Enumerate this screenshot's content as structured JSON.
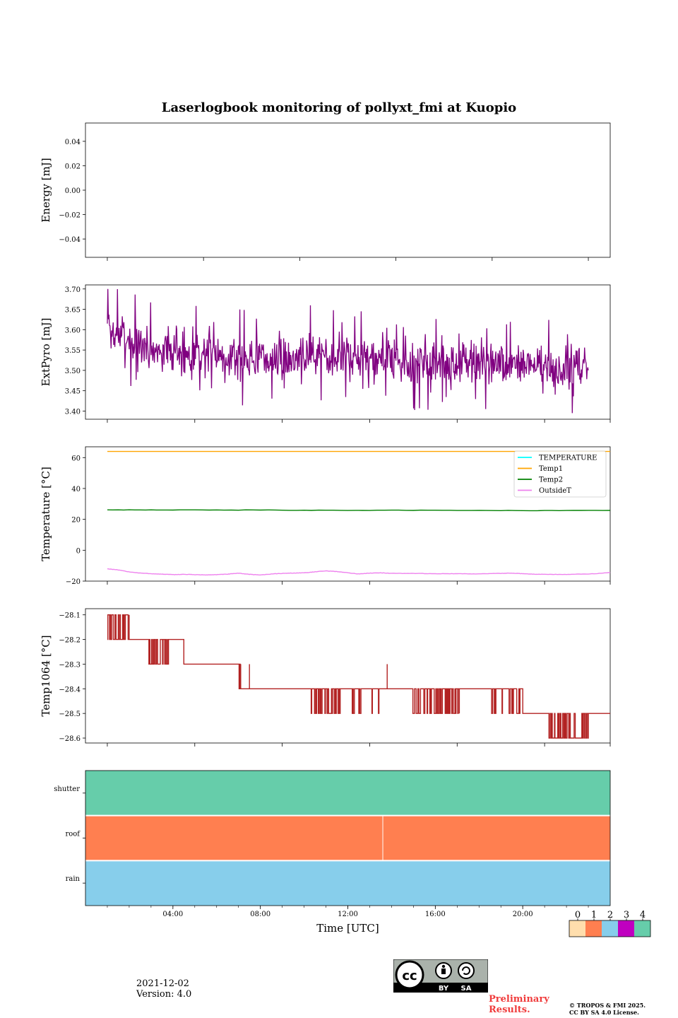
{
  "title": "Laserlogbook monitoring of pollyxt_fmi at Kuopio",
  "footer": {
    "date": "2021-12-02",
    "version": "Version: 4.0",
    "preliminary_line1": "Preliminary",
    "preliminary_line2": "Results.",
    "copyright_line1": "© TROPOS & FMI 2025.",
    "copyright_line2": "CC BY SA 4.0 License.",
    "cc_badge": {
      "cc": "cc",
      "by": "BY",
      "sa": "SA"
    }
  },
  "colors": {
    "extpyro": "#800080",
    "temperature": "#00ffff",
    "temp1": "#ffa500",
    "temp2": "#008000",
    "outsideT": "#ee82ee",
    "temp1064": "#b22222",
    "flag_colors": [
      "#ffdead",
      "#ff7f50",
      "#87ceeb",
      "#c000c0",
      "#66cdaa"
    ]
  },
  "chart_data": [
    {
      "type": "line",
      "panel": "energy",
      "ylabel": "Energy [mJ]",
      "ylim": [
        -0.055,
        0.055
      ],
      "yticks": [
        0.04,
        0.02,
        0.0,
        -0.02,
        -0.04
      ],
      "ytick_labels": [
        "0.04",
        "0.02",
        "0.00",
        "−0.02",
        "−0.04"
      ],
      "xlim": [
        0,
        24
      ],
      "series": []
    },
    {
      "type": "line",
      "panel": "extpyro",
      "ylabel": "ExtPyro [mJ]",
      "ylim": [
        3.38,
        3.71
      ],
      "yticks": [
        3.7,
        3.65,
        3.6,
        3.55,
        3.5,
        3.45,
        3.4
      ],
      "ytick_labels": [
        "3.70",
        "3.65",
        "3.60",
        "3.55",
        "3.50",
        "3.45",
        "3.40"
      ],
      "xlim": [
        0,
        24
      ],
      "series": [
        {
          "name": "ExtPyro",
          "color": "#800080",
          "x": [
            1.0,
            1.2,
            1.4,
            1.6,
            1.8,
            2.0,
            2.2,
            2.4,
            2.6,
            2.8,
            3.0,
            3.5,
            4.0,
            4.5,
            5.0,
            5.5,
            6.0,
            6.5,
            7.0,
            7.5,
            8.0,
            8.5,
            9.0,
            9.5,
            10.0,
            10.5,
            11.0,
            11.5,
            12.0,
            12.5,
            13.0,
            13.5,
            14.0,
            14.5,
            15.0,
            15.5,
            16.0,
            16.5,
            17.0,
            17.5,
            18.0,
            18.5,
            19.0,
            19.5,
            20.0,
            20.5,
            21.0,
            21.5,
            22.0,
            22.5,
            23.0
          ],
          "center": [
            3.6,
            3.6,
            3.59,
            3.59,
            3.58,
            3.58,
            3.57,
            3.57,
            3.56,
            3.56,
            3.55,
            3.55,
            3.55,
            3.54,
            3.54,
            3.54,
            3.54,
            3.54,
            3.53,
            3.53,
            3.53,
            3.53,
            3.53,
            3.53,
            3.54,
            3.54,
            3.54,
            3.54,
            3.53,
            3.53,
            3.53,
            3.53,
            3.53,
            3.52,
            3.52,
            3.52,
            3.52,
            3.52,
            3.52,
            3.52,
            3.52,
            3.51,
            3.51,
            3.51,
            3.51,
            3.51,
            3.51,
            3.5,
            3.5,
            3.5,
            3.5
          ],
          "spread": 0.035,
          "max": 3.7,
          "min": 3.395,
          "end_value": 3.5
        }
      ]
    },
    {
      "type": "line",
      "panel": "temperature",
      "ylabel": "Temperature [°C]",
      "ylim": [
        -20,
        67
      ],
      "yticks": [
        60,
        40,
        20,
        0,
        -20
      ],
      "ytick_labels": [
        "60",
        "40",
        "20",
        "0",
        "−20"
      ],
      "xlim": [
        0,
        24
      ],
      "legend": {
        "position": "top-right",
        "entries": [
          "TEMPERATURE",
          "Temp1",
          "Temp2",
          "OutsideT"
        ]
      },
      "series": [
        {
          "name": "TEMPERATURE",
          "color": "#00ffff",
          "x": [],
          "y": []
        },
        {
          "name": "Temp1",
          "color": "#ffa500",
          "x": [
            1,
            24
          ],
          "y": [
            64,
            64
          ]
        },
        {
          "name": "Temp2",
          "color": "#008000",
          "x": [
            1,
            4,
            8,
            12,
            16,
            20,
            24
          ],
          "y": [
            26.2,
            26.1,
            26.0,
            25.8,
            25.9,
            25.7,
            25.8
          ]
        },
        {
          "name": "OutsideT",
          "color": "#ee82ee",
          "x": [
            1.0,
            1.5,
            2.0,
            2.5,
            3.0,
            3.5,
            4.0,
            4.5,
            5.0,
            5.5,
            6.0,
            6.5,
            7.0,
            7.5,
            8.0,
            8.5,
            9.0,
            9.5,
            10.0,
            10.5,
            11.0,
            11.5,
            12.0,
            12.5,
            13.0,
            13.5,
            14.0,
            15.0,
            16.0,
            17.0,
            18.0,
            19.0,
            19.5,
            20.0,
            20.5,
            21.0,
            22.0,
            23.0,
            24.0
          ],
          "y": [
            -12.0,
            -12.8,
            -14.0,
            -14.8,
            -15.2,
            -15.5,
            -15.8,
            -15.6,
            -15.8,
            -16.0,
            -15.8,
            -15.5,
            -14.9,
            -15.6,
            -16.0,
            -15.4,
            -15.0,
            -14.8,
            -14.6,
            -14.0,
            -13.4,
            -13.8,
            -14.6,
            -15.4,
            -14.8,
            -14.6,
            -15.0,
            -15.0,
            -15.2,
            -15.2,
            -15.3,
            -15.0,
            -14.8,
            -15.2,
            -15.5,
            -15.6,
            -15.7,
            -15.4,
            -14.5
          ]
        }
      ]
    },
    {
      "type": "line",
      "panel": "temp1064",
      "ylabel": "Temp1064 [°C]",
      "ylim": [
        -28.62,
        -28.075
      ],
      "yticks": [
        -28.1,
        -28.2,
        -28.3,
        -28.4,
        -28.5,
        -28.6
      ],
      "ytick_labels": [
        "−28.1",
        "−28.2",
        "−28.3",
        "−28.4",
        "−28.5",
        "−28.6"
      ],
      "xlim": [
        0,
        24
      ],
      "series": [
        {
          "name": "Temp1064",
          "color": "#b22222",
          "segments": [
            {
              "from": 1.0,
              "to": 2.0,
              "base": -28.2,
              "alt": -28.1,
              "density": 0.45
            },
            {
              "from": 2.0,
              "to": 2.8,
              "base": -28.2,
              "alt": -28.2,
              "density": 0.0
            },
            {
              "from": 2.8,
              "to": 3.8,
              "base": -28.2,
              "alt": -28.3,
              "density": 0.5
            },
            {
              "from": 3.8,
              "to": 4.5,
              "base": -28.2,
              "alt": -28.2,
              "density": 0.0
            },
            {
              "from": 4.5,
              "to": 7.0,
              "base": -28.3,
              "alt": -28.3,
              "density": 0.0
            },
            {
              "from": 7.0,
              "to": 7.1,
              "base": -28.3,
              "alt": -28.4,
              "density": 0.6
            },
            {
              "from": 7.1,
              "to": 10.3,
              "base": -28.4,
              "alt": -28.4,
              "density": 0.0
            },
            {
              "from": 10.3,
              "to": 11.5,
              "base": -28.4,
              "alt": -28.5,
              "density": 0.35
            },
            {
              "from": 11.5,
              "to": 13.6,
              "base": -28.4,
              "alt": -28.5,
              "density": 0.15
            },
            {
              "from": 13.6,
              "to": 14.9,
              "base": -28.4,
              "alt": -28.4,
              "density": 0.0
            },
            {
              "from": 14.9,
              "to": 17.1,
              "base": -28.4,
              "alt": -28.5,
              "density": 0.4
            },
            {
              "from": 17.1,
              "to": 18.5,
              "base": -28.4,
              "alt": -28.4,
              "density": 0.0
            },
            {
              "from": 18.5,
              "to": 20.0,
              "base": -28.4,
              "alt": -28.5,
              "density": 0.3
            },
            {
              "from": 20.0,
              "to": 21.2,
              "base": -28.5,
              "alt": -28.5,
              "density": 0.0
            },
            {
              "from": 21.2,
              "to": 23.0,
              "base": -28.6,
              "alt": -28.5,
              "density": 0.4
            },
            {
              "from": 23.0,
              "to": 24.0,
              "base": -28.5,
              "alt": -28.5,
              "density": 0.0
            }
          ],
          "spikes": [
            [
              7.5,
              -28.3
            ],
            [
              13.8,
              -28.3
            ]
          ]
        }
      ]
    },
    {
      "type": "heatmap",
      "panel": "status_flags",
      "xlabel": "Time [UTC]",
      "rows": [
        "shutter",
        "roof",
        "rain"
      ],
      "row_values": [
        4,
        1,
        2
      ],
      "xlim": [
        0,
        24
      ],
      "xticks": [
        4,
        8,
        12,
        16,
        20
      ],
      "xtick_labels": [
        "04:00",
        "08:00",
        "12:00",
        "16:00",
        "20:00"
      ],
      "roof_marker_at": 13.6,
      "colorbar": {
        "ticks": [
          "0",
          "1",
          "2",
          "3",
          "4"
        ],
        "colors": [
          "#ffdead",
          "#ff7f50",
          "#87ceeb",
          "#c000c0",
          "#66cdaa"
        ]
      }
    }
  ]
}
